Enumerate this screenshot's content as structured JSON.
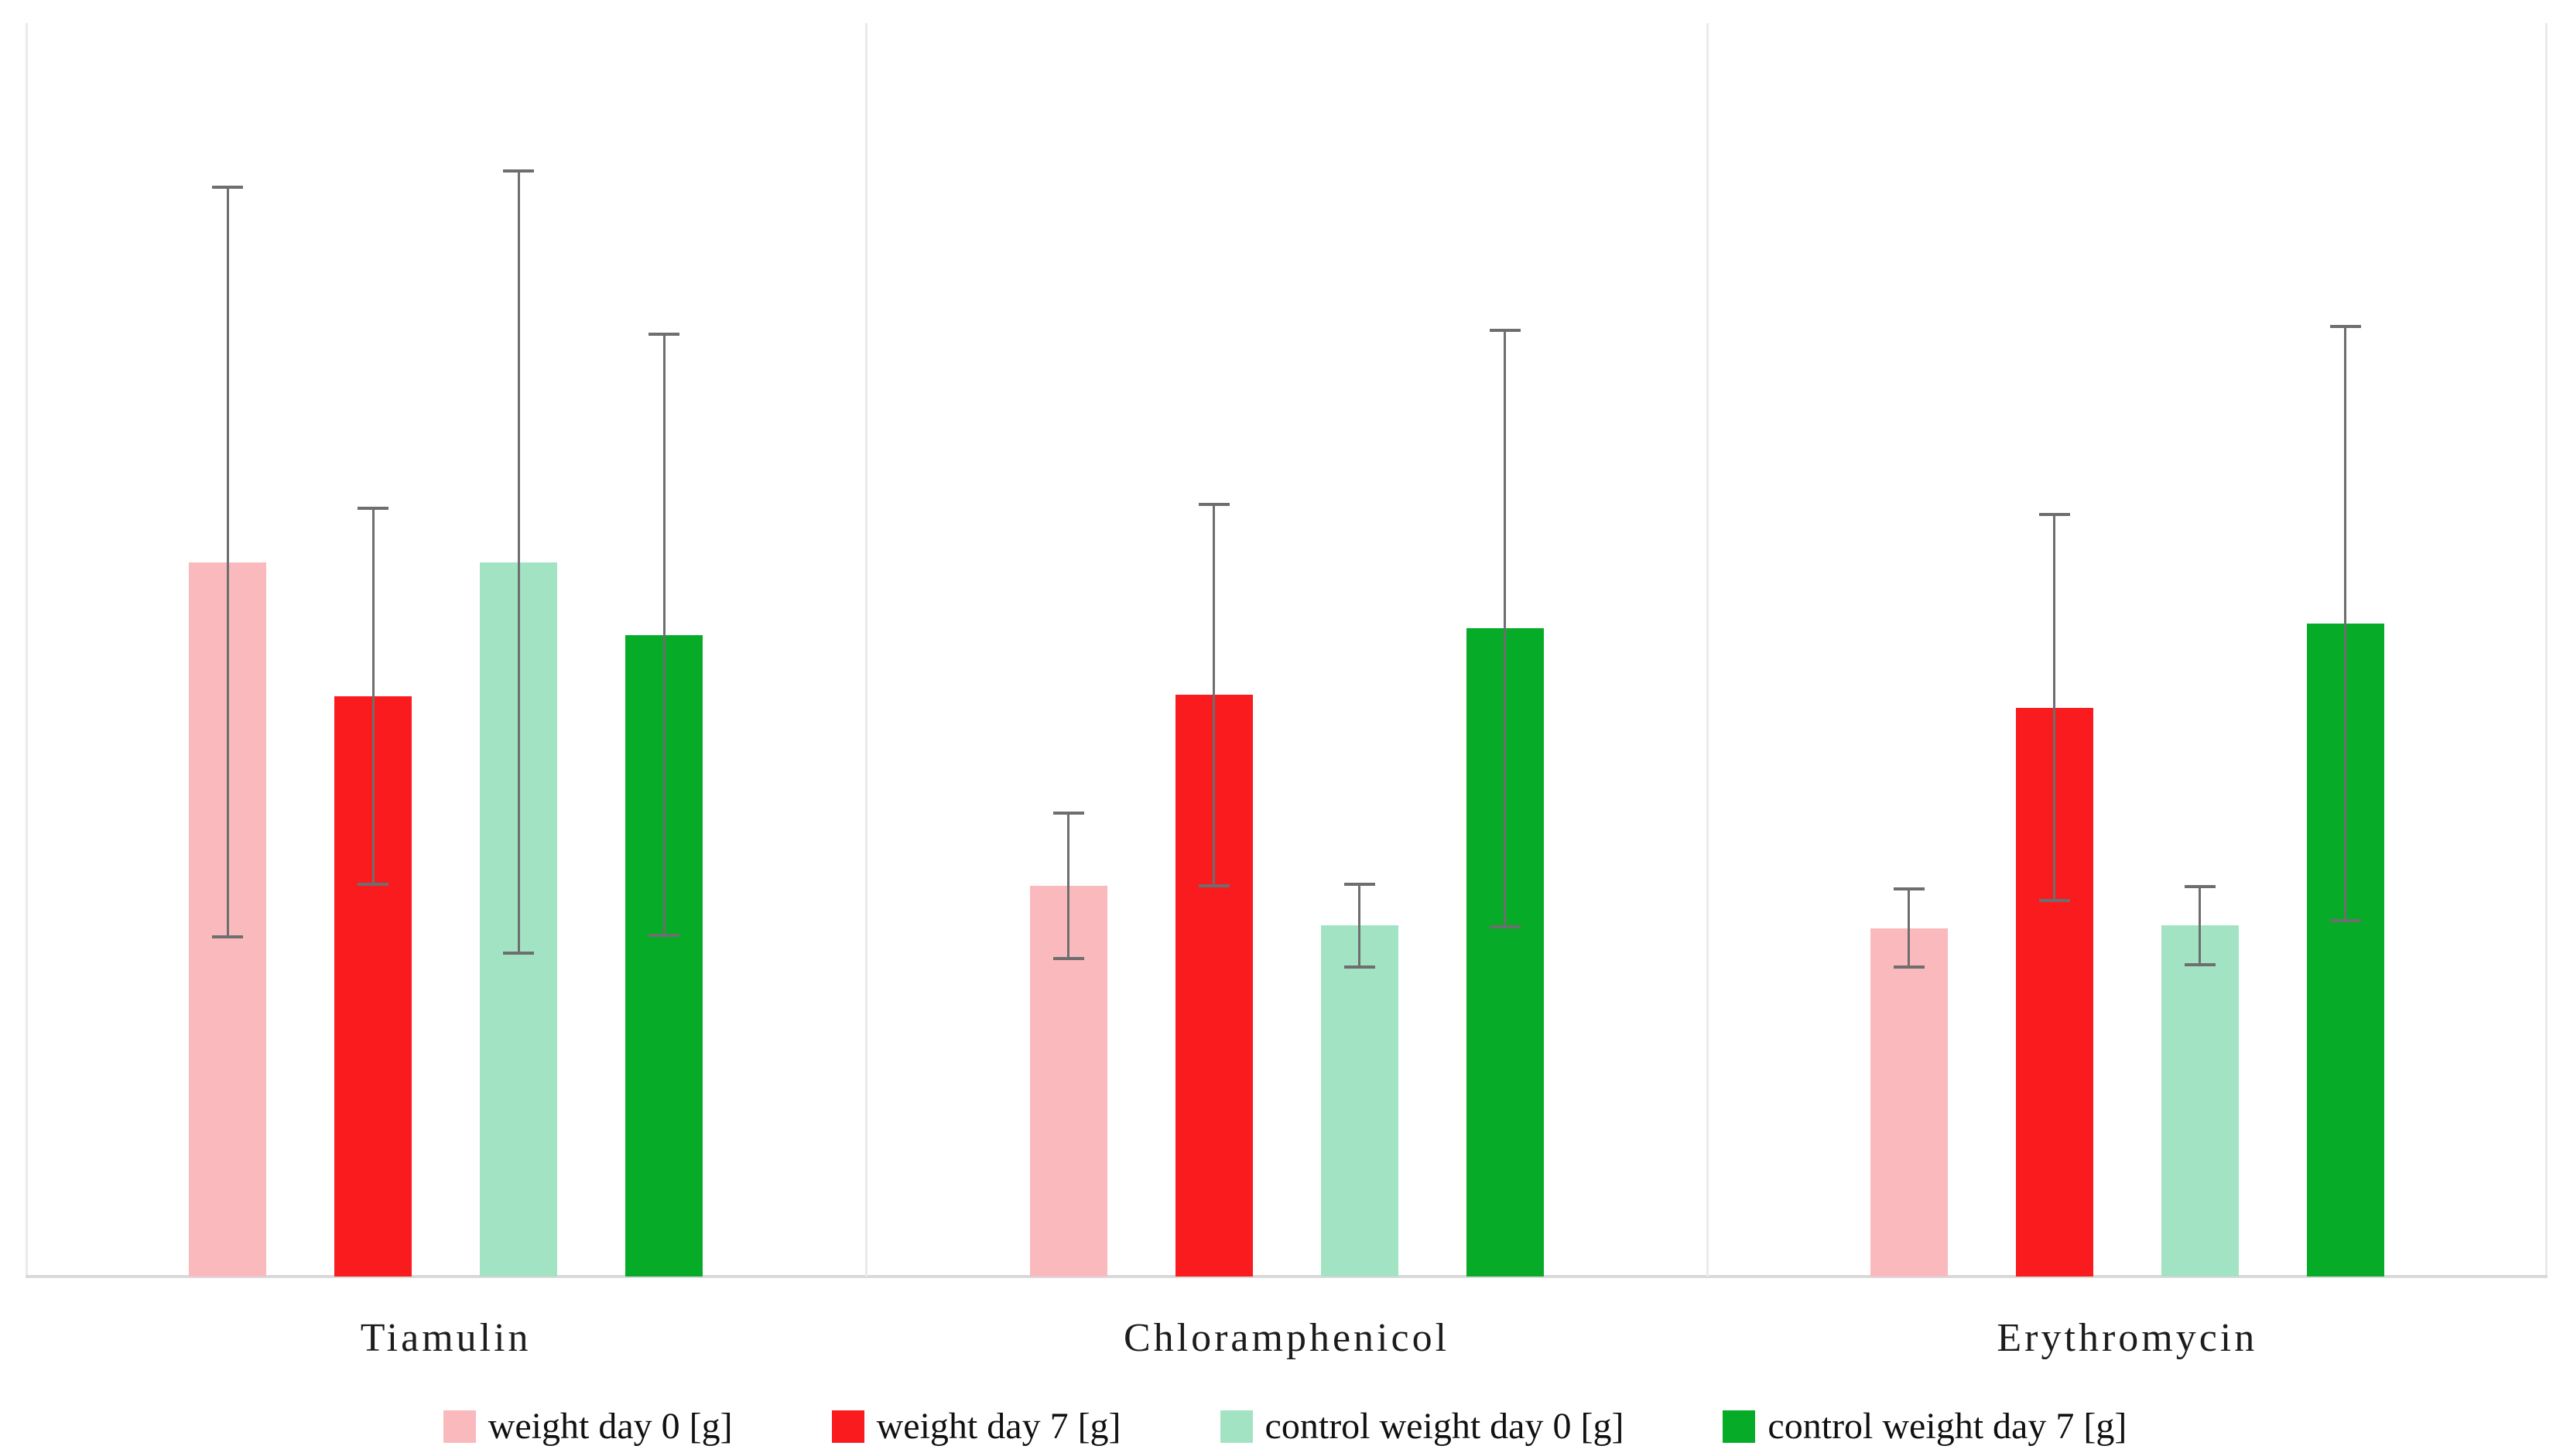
{
  "chart_data": {
    "type": "bar",
    "title": "",
    "xlabel": "",
    "ylabel": "",
    "units": "relative height, % of plot area (no y-axis ticks shown in figure)",
    "ylim": [
      0,
      100
    ],
    "grid": "vertical category separators only, no horizontal gridlines, no y-axis labels",
    "legend_position": "bottom",
    "error_bars": true,
    "categories": [
      "Tiamulin",
      "Chloramphenicol",
      "Erythromycin"
    ],
    "series": [
      {
        "name": "weight day 0 [g]",
        "color": "#FAB9BC",
        "values": [
          57.0,
          31.2,
          27.8
        ],
        "error": [
          29.9,
          5.8,
          3.1
        ]
      },
      {
        "name": "weight day 7 [g]",
        "color": "#F91B1E",
        "values": [
          46.3,
          46.4,
          45.4
        ],
        "error": [
          15.0,
          15.2,
          15.4
        ]
      },
      {
        "name": "control weight day 0 [g]",
        "color": "#A2E3C3",
        "values": [
          57.0,
          28.0,
          28.0
        ],
        "error": [
          31.2,
          3.3,
          3.1
        ]
      },
      {
        "name": "control weight day 7 [g]",
        "color": "#06AC27",
        "values": [
          51.2,
          51.7,
          52.1
        ],
        "error": [
          24.0,
          23.8,
          23.7
        ]
      }
    ],
    "colors": {
      "plot_border": "#EAEAEA",
      "category_separator": "#EAEAEA",
      "baseline_axis": "#D9D9D9",
      "error_bar": "#6E6E6E",
      "label_text": "#1C1C1C"
    }
  }
}
